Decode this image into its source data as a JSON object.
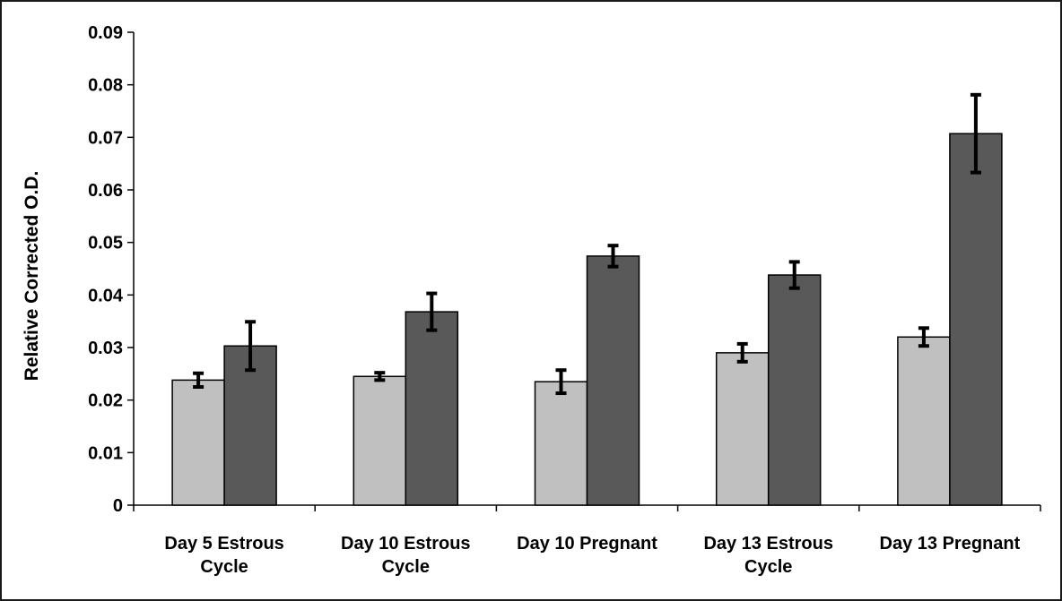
{
  "chart_data": {
    "type": "bar",
    "title": "",
    "xlabel": "",
    "ylabel": "Relative Corrected O.D.",
    "ylim": [
      0,
      0.09
    ],
    "yticks": [
      "0",
      "0.01",
      "0.02",
      "0.03",
      "0.04",
      "0.05",
      "0.06",
      "0.07",
      "0.08",
      "0.09"
    ],
    "ytick_values": [
      0,
      0.01,
      0.02,
      0.03,
      0.04,
      0.05,
      0.06,
      0.07,
      0.08,
      0.09
    ],
    "categories": [
      [
        "Day 5 Estrous",
        "Cycle"
      ],
      [
        "Day 10 Estrous",
        "Cycle"
      ],
      [
        "Day 10 Pregnant"
      ],
      [
        "Day 13 Estrous",
        "Cycle"
      ],
      [
        "Day 13 Pregnant"
      ]
    ],
    "series": [
      {
        "color": "#c0c0c0",
        "values": [
          0.0238,
          0.0245,
          0.0235,
          0.029,
          0.032
        ],
        "errors": [
          0.0013,
          0.0007,
          0.0022,
          0.0017,
          0.0017
        ]
      },
      {
        "color": "#595959",
        "values": [
          0.0303,
          0.0368,
          0.0474,
          0.0438,
          0.0707
        ],
        "errors": [
          0.0046,
          0.0035,
          0.002,
          0.0025,
          0.0074
        ]
      }
    ],
    "grid": false,
    "legend": "none"
  }
}
